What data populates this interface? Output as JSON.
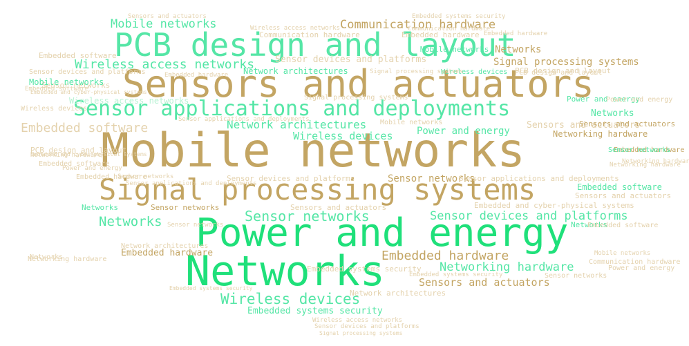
{
  "palette": {
    "gold": "#c3a563",
    "light_tan": "#e4d2ad",
    "mint": "#55e6a6",
    "bright_green": "#1fe07a",
    "light_mint": "#b9f2d4",
    "faint_tan": "#f0e6d2"
  },
  "words": [
    "Mobile networks",
    "Sensors and actuators",
    "PCB design and layout",
    "Power and energy",
    "Networks",
    "Signal processing systems",
    "Sensor applications and deployments",
    "Wireless access networks",
    "Mobile networks",
    "Communication hardware",
    "Embedded software",
    "Network architectures",
    "Wireless devices",
    "Sensor networks",
    "Sensor devices and platforms",
    "Embedded hardware",
    "Networking hardware",
    "Sensors and actuators",
    "Wireless devices",
    "Embedded systems security",
    "Networks",
    "Embedded and cyber-physical systems",
    "Signal processing systems",
    "PCB design and layout",
    "Mobile networks",
    "Networks",
    "Power and energy",
    "Sensor networks",
    "Embedded software",
    "Networking hardware",
    "Sensors and actuators",
    "Power and energy",
    "Network architectures",
    "Embedded hardware",
    "Wireless access networks",
    "Networks",
    "Sensors and actuators",
    "Sensor devices and platforms",
    "Networks",
    "Sensor networks",
    "Embedded hardware",
    "Embedded software",
    "Network architectures",
    "Embedded systems security",
    "Communication hardware",
    "Sensor networks",
    "Sensors and actuators",
    "Sensor applications and deployments",
    "Wireless devices",
    "Sensor devices and platforms",
    "PCB design and layout",
    "Embedded hardware",
    "Power and energy",
    "Networking hardware",
    "Mobile networks",
    "Sensor networks",
    "Networks",
    "Signal processing systems",
    "Wireless devices",
    "Wireless access networks",
    "Embedded software",
    "Sensor devices and platforms",
    "Networks",
    "Sensors and actuators",
    "Embedded hardware",
    "Networking hardware",
    "Embedded systems security",
    "Signal processing systems",
    "Communication hardware",
    "Sensor networks",
    "Power and energy",
    "Network architectures",
    "Embedded systems security",
    "Sensors and actuators",
    "Wireless access networks",
    "Sensor devices and platforms",
    "Signal processing systems",
    "Embedded and cyber-physical systems",
    "Embedded hardware",
    "Sensor applications and deployments",
    "Mobile networks",
    "Embedded hardware",
    "PCB design and layout",
    "Embedded software",
    "Sensor networks",
    "Embedded and cyber-physical systems",
    "Mobile networks",
    "Sensor networks",
    "Networking hardware",
    "Power and energy",
    "Embedded software",
    "Communication hardware",
    "Sensor applications and deployments",
    "Networking hardware",
    "Embedded systems security"
  ]
}
